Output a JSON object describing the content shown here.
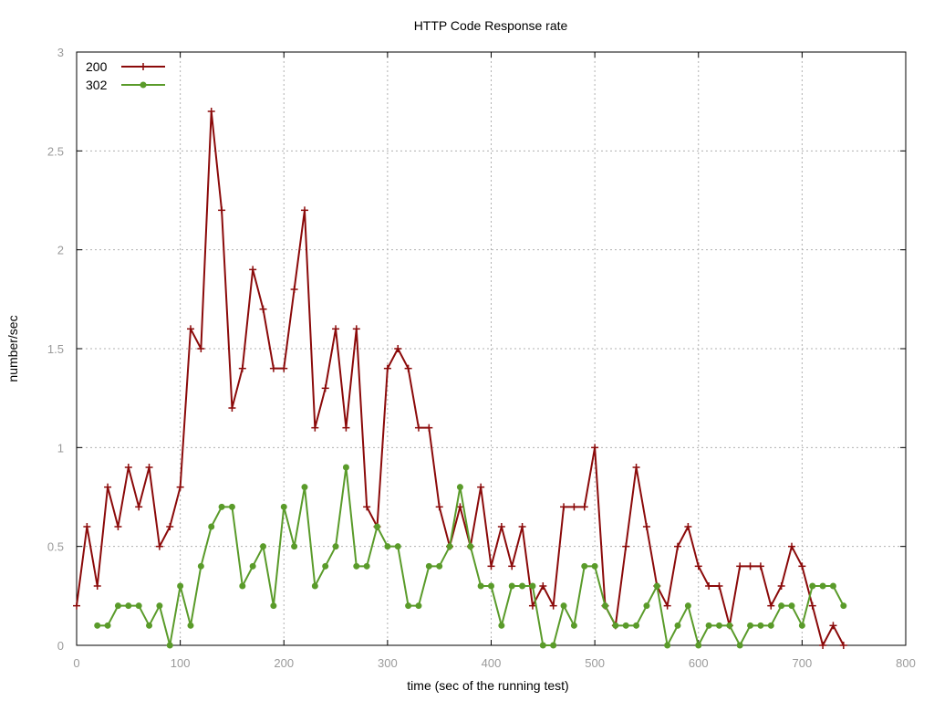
{
  "chart_data": {
    "type": "line",
    "title": "HTTP Code Response rate",
    "xlabel": "time (sec of the running test)",
    "ylabel": "number/sec",
    "xlim": [
      0,
      800
    ],
    "ylim": [
      0,
      3
    ],
    "x_ticks": [
      0,
      100,
      200,
      300,
      400,
      500,
      600,
      700,
      800
    ],
    "y_ticks": [
      0,
      0.5,
      1,
      1.5,
      2,
      2.5,
      3
    ],
    "y_tick_labels": [
      "0",
      "0.5",
      "1",
      "1.5",
      "2",
      "2.5",
      "3"
    ],
    "grid": true,
    "legend_position": "top-left",
    "series": [
      {
        "name": "200",
        "color": "#8b0a0a",
        "marker": "plus",
        "x": [
          0,
          10,
          20,
          30,
          40,
          50,
          60,
          70,
          80,
          90,
          100,
          110,
          120,
          130,
          140,
          150,
          160,
          170,
          180,
          190,
          200,
          210,
          220,
          230,
          240,
          250,
          260,
          270,
          280,
          290,
          300,
          310,
          320,
          330,
          340,
          350,
          360,
          370,
          380,
          390,
          400,
          410,
          420,
          430,
          440,
          450,
          460,
          470,
          480,
          490,
          500,
          510,
          520,
          530,
          540,
          550,
          560,
          570,
          580,
          590,
          600,
          610,
          620,
          630,
          640,
          650,
          660,
          670,
          680,
          690,
          700,
          710,
          720,
          730,
          740
        ],
        "y": [
          0.2,
          0.6,
          0.3,
          0.8,
          0.6,
          0.9,
          0.7,
          0.9,
          0.5,
          0.6,
          0.8,
          1.6,
          1.5,
          2.7,
          2.2,
          1.2,
          1.4,
          1.9,
          1.7,
          1.4,
          1.4,
          1.8,
          2.2,
          1.1,
          1.3,
          1.6,
          1.1,
          1.6,
          0.7,
          0.6,
          1.4,
          1.5,
          1.4,
          1.1,
          1.1,
          0.7,
          0.5,
          0.7,
          0.5,
          0.8,
          0.4,
          0.6,
          0.4,
          0.6,
          0.2,
          0.3,
          0.2,
          0.7,
          0.7,
          0.7,
          1.0,
          0.2,
          0.1,
          0.5,
          0.9,
          0.6,
          0.3,
          0.2,
          0.5,
          0.6,
          0.4,
          0.3,
          0.3,
          0.1,
          0.4,
          0.4,
          0.4,
          0.2,
          0.3,
          0.5,
          0.4,
          0.2,
          0.0,
          0.1,
          0.0
        ]
      },
      {
        "name": "302",
        "color": "#5a9b2a",
        "marker": "circle",
        "x": [
          20,
          30,
          40,
          50,
          60,
          70,
          80,
          90,
          100,
          110,
          120,
          130,
          140,
          150,
          160,
          170,
          180,
          190,
          200,
          210,
          220,
          230,
          240,
          250,
          260,
          270,
          280,
          290,
          300,
          310,
          320,
          330,
          340,
          350,
          360,
          370,
          380,
          390,
          400,
          410,
          420,
          430,
          440,
          450,
          460,
          470,
          480,
          490,
          500,
          510,
          520,
          530,
          540,
          550,
          560,
          570,
          580,
          590,
          600,
          610,
          620,
          630,
          640,
          650,
          660,
          670,
          680,
          690,
          700,
          710,
          720,
          730,
          740
        ],
        "y": [
          0.1,
          0.1,
          0.2,
          0.2,
          0.2,
          0.1,
          0.2,
          0.0,
          0.3,
          0.1,
          0.4,
          0.6,
          0.7,
          0.7,
          0.3,
          0.4,
          0.5,
          0.2,
          0.7,
          0.5,
          0.8,
          0.3,
          0.4,
          0.5,
          0.9,
          0.4,
          0.4,
          0.6,
          0.5,
          0.5,
          0.2,
          0.2,
          0.4,
          0.4,
          0.5,
          0.8,
          0.5,
          0.3,
          0.3,
          0.1,
          0.3,
          0.3,
          0.3,
          0.0,
          0.0,
          0.2,
          0.1,
          0.4,
          0.4,
          0.2,
          0.1,
          0.1,
          0.1,
          0.2,
          0.3,
          0.0,
          0.1,
          0.2,
          0.0,
          0.1,
          0.1,
          0.1,
          0.0,
          0.1,
          0.1,
          0.1,
          0.2,
          0.2,
          0.1,
          0.3,
          0.3,
          0.3,
          0.2
        ]
      }
    ]
  }
}
